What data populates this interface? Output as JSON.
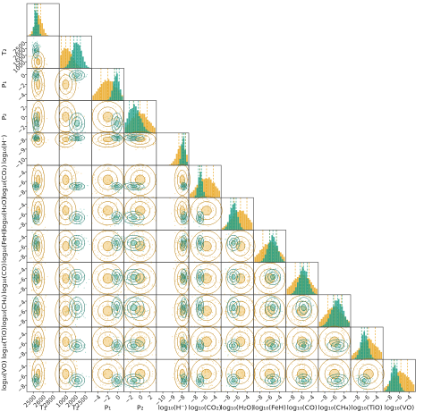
{
  "chart_data": {
    "type": "corner",
    "parameters": [
      "T1",
      "T2",
      "P1",
      "P2",
      "log10(H-)",
      "log10(CO2)",
      "log10(H2O)",
      "log10(FeH)",
      "log10(CO)",
      "log10(CH4)",
      "log10(TiO)",
      "log10(VO)"
    ],
    "axis_labels": [
      "T$_1$",
      "T$_2$",
      "P$_1$",
      "P$_2$",
      "log$_{10}$(H$^-$)",
      "log$_{10}$(CO$_2$)",
      "log$_{10}$(H$_2$O)",
      "log$_{10}$(FeH)",
      "log$_{10}$(CO)",
      "log$_{10}$(CH$_4$)",
      "log$_{10}$(TiO)",
      "log$_{10}$(VO)"
    ],
    "axis_labels_display": [
      "T₁",
      "T₂",
      "P₁",
      "P₂",
      "log₁₀(H⁻)",
      "log₁₀(CO₂)",
      "log₁₀(H₂O)",
      "log₁₀(FeH)",
      "log₁₀(CO)",
      "log₁₀(CH₄)",
      "log₁₀(TiO)",
      "log₁₀(VO)"
    ],
    "ranges": [
      [
        1900,
        2900
      ],
      [
        400,
        3100
      ],
      [
        -4.5,
        0.5
      ],
      [
        -2.5,
        2.5
      ],
      [
        -11,
        -7
      ],
      [
        -12,
        -2
      ],
      [
        -12,
        -2
      ],
      [
        -12,
        -2
      ],
      [
        -12,
        -2
      ],
      [
        -12,
        -2
      ],
      [
        -12,
        -2
      ],
      [
        -12,
        -2
      ]
    ],
    "x_ticks": [
      [
        "2500",
        "2600",
        "2800"
      ],
      [
        "1000",
        "2000",
        "2500"
      ],
      [
        "−4",
        "−2",
        "0"
      ],
      [
        "−2",
        "0",
        "2"
      ],
      [
        "−10",
        "−9",
        "−8"
      ],
      [
        "−8",
        "−6",
        "−4"
      ],
      [
        "−8",
        "−6",
        "−4"
      ],
      [
        "−8",
        "−6",
        "−4"
      ],
      [
        "−8",
        "−6",
        "−4"
      ],
      [
        "−8",
        "−6",
        "−4"
      ],
      [
        "−8",
        "−6",
        "−4"
      ],
      [
        "−8",
        "−6",
        "−4"
      ]
    ],
    "y_ticks": [
      [],
      [
        "1000",
        "1500",
        "2000",
        "2500"
      ],
      [
        "−4",
        "−2",
        "0"
      ],
      [
        "−2",
        "0",
        "2"
      ],
      [
        "−10",
        "−9",
        "−8"
      ],
      [
        "−8",
        "−6",
        "−4"
      ],
      [
        "−8",
        "−6",
        "−4"
      ],
      [
        "−8",
        "−6",
        "−4"
      ],
      [
        "−8",
        "−6",
        "−4"
      ],
      [
        "−8",
        "−6",
        "−4"
      ],
      [
        "−8",
        "−6",
        "−4"
      ],
      [
        "−8",
        "−6",
        "−4"
      ]
    ],
    "series": [
      {
        "color": "#e8a317",
        "marginal_modes": [
          0.35,
          0.2,
          0.5,
          0.5,
          0.8,
          0.55,
          0.6,
          0.5,
          0.5,
          0.5,
          0.55,
          0.55
        ],
        "marginal_widths": [
          0.12,
          0.2,
          0.3,
          0.3,
          0.15,
          0.3,
          0.28,
          0.3,
          0.3,
          0.3,
          0.3,
          0.3
        ]
      },
      {
        "color": "#21a089",
        "marginal_modes": [
          0.28,
          0.55,
          0.78,
          0.3,
          0.85,
          0.35,
          0.38,
          0.6,
          0.55,
          0.6,
          0.42,
          0.35
        ],
        "marginal_widths": [
          0.06,
          0.15,
          0.1,
          0.2,
          0.06,
          0.07,
          0.12,
          0.15,
          0.15,
          0.2,
          0.12,
          0.12
        ]
      }
    ],
    "grid": false,
    "legend": "none",
    "title": ""
  }
}
